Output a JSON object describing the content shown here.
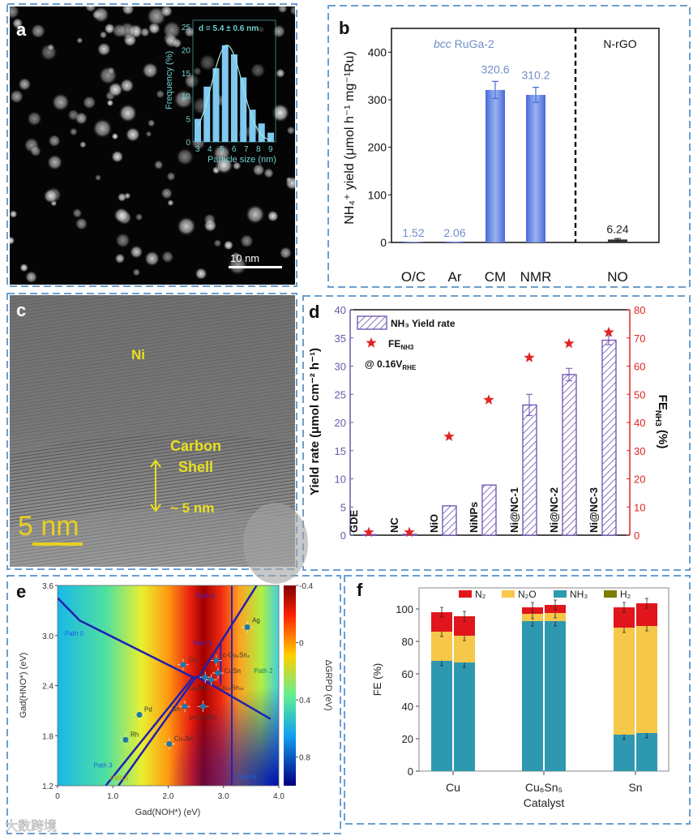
{
  "panel_labels": {
    "a": "a",
    "b": "b",
    "c": "c",
    "d": "d",
    "e": "e",
    "f": "f"
  },
  "panel_a": {
    "scale_bar": "10 nm",
    "colors": {
      "bar": "#7fc8f0",
      "axis": "#6fd0d0"
    }
  },
  "panel_c": {
    "ni_label": "Ni",
    "carbon_label": "Carbon",
    "shell_label": "Shell",
    "thickness_label": "~ 5 nm",
    "scale_bar": "5 nm"
  },
  "chart_data": [
    {
      "id": "a_inset",
      "type": "bar",
      "title": "d = 5.4 ± 0.6 nm",
      "xlabel": "Particle size (nm)",
      "ylabel": "Frequency (%)",
      "x_ticks": [
        "3",
        "4",
        "5",
        "6",
        "7",
        "8",
        "9"
      ],
      "xlim": [
        3,
        9
      ],
      "y_ticks": [
        "0",
        "5",
        "10",
        "15",
        "20",
        "25"
      ],
      "ylim": [
        0,
        25
      ],
      "bin_centers": [
        3,
        3.75,
        4.5,
        5.25,
        6,
        6.75,
        7.5,
        8.25,
        9
      ],
      "values": [
        5,
        12,
        16,
        21,
        19,
        14,
        7,
        4,
        2
      ],
      "fit": "gaussian"
    },
    {
      "id": "b",
      "type": "bar",
      "categories": [
        "O/C",
        "Ar",
        "CM",
        "NMR",
        "NO"
      ],
      "values": [
        1.52,
        2.06,
        320.6,
        310.2,
        6.24
      ],
      "value_labels": [
        "1.52",
        "2.06",
        "320.6",
        "310.2",
        "6.24"
      ],
      "errors": [
        0,
        0,
        18,
        16,
        2
      ],
      "group_labels": [
        "bcc RuGa-2",
        "N-rGO"
      ],
      "group_label_prefix": "bcc",
      "group_label_rest": " RuGa-2",
      "ylabel": "NH₄⁺ yield (μmol h⁻¹ mg⁻¹Ru)",
      "ylim": [
        0,
        450
      ],
      "y_ticks": [
        "0",
        "100",
        "200",
        "300",
        "400"
      ],
      "colors": {
        "bar": "#5577dd",
        "label": "#6f8fca",
        "other": "#333333"
      }
    },
    {
      "id": "d",
      "type": "bar",
      "categories": [
        "GDE",
        "NC",
        "NiO",
        "NiNPs",
        "Ni@NC-1",
        "Ni@NC-2",
        "Ni@NC-3"
      ],
      "series": [
        {
          "name": "NH₃ Yield rate",
          "axis": "left",
          "values": [
            0.1,
            0.15,
            5.2,
            8.9,
            23.1,
            28.5,
            34.6
          ],
          "errors": [
            0,
            0,
            0.1,
            0.2,
            1.9,
            1.1,
            0.8
          ]
        },
        {
          "name": "FE_NH3",
          "axis": "right",
          "type": "scatter",
          "values": [
            1,
            1,
            35,
            48,
            63,
            68,
            72
          ]
        }
      ],
      "legend": [
        "NH₃ Yield rate",
        "FE",
        "NH3"
      ],
      "annotation": [
        "@ 0.16V",
        "RHE"
      ],
      "ylabel": "Yield rate (μmol cm⁻² h⁻¹)",
      "y2label": "FE",
      "y2label_sub": "NH3",
      "y2label_unit": " (%)",
      "ylim": [
        0,
        40
      ],
      "y2lim": [
        0,
        80
      ],
      "y_ticks": [
        "0",
        "5",
        "10",
        "15",
        "20",
        "25",
        "30",
        "35",
        "40"
      ],
      "y2_ticks": [
        "0",
        "10",
        "20",
        "30",
        "40",
        "50",
        "60",
        "70",
        "80"
      ],
      "colors": {
        "bar": "#6a4fb0",
        "star": "#e02424",
        "left_axis": "#6a5aa8",
        "right_axis": "#e02424"
      }
    },
    {
      "id": "e",
      "type": "heatmap",
      "xlabel": "Gad(NOH*) (eV)",
      "ylabel": "Gad(HNO*) (eV)",
      "xlim": [
        0,
        4
      ],
      "ylim": [
        1.2,
        3.6
      ],
      "x_ticks": [
        "0",
        "1.0",
        "2.0",
        "3.0",
        "4.0"
      ],
      "y_ticks": [
        "1.2",
        "1.8",
        "2.4",
        "3.0",
        "3.6"
      ],
      "colorbar_label": "ΔGRPD (eV)",
      "colorbar_ticks": [
        "-0.4",
        "0",
        "0.4",
        "0.8"
      ],
      "colorbar_range": [
        -0.4,
        1.0
      ],
      "points": [
        {
          "label": "Cu",
          "x": 2.27,
          "y": 2.65
        },
        {
          "label": "Ag",
          "x": 3.43,
          "y": 3.1
        },
        {
          "label": "c-Cu₆Sn₄",
          "x": 2.87,
          "y": 2.7
        },
        {
          "label": "CuSn",
          "x": 2.9,
          "y": 2.55
        },
        {
          "label": "Cu₆Sn₅",
          "x": 2.67,
          "y": 2.5
        },
        {
          "label": "Cu₁₀Sn₁₆",
          "x": 2.78,
          "y": 2.47
        },
        {
          "label": "Sn",
          "x": 2.3,
          "y": 2.15
        },
        {
          "label": "p-Cu₆Sn₄",
          "x": 2.63,
          "y": 2.15
        },
        {
          "label": "Pd",
          "x": 1.48,
          "y": 2.05
        },
        {
          "label": "Rh",
          "x": 1.23,
          "y": 1.75
        },
        {
          "label": "Cu₃Sn",
          "x": 2.02,
          "y": 1.7
        }
      ],
      "regions": [
        "Path 0",
        "Path 1",
        "Path 2",
        "Path 3",
        "Path 3",
        "Path 4",
        "Path 4"
      ]
    },
    {
      "id": "f",
      "type": "bar",
      "stacked": true,
      "categories": [
        "Cu",
        "Cu₆Sn₅",
        "Sn"
      ],
      "xlabel": "Catalyst",
      "ylabel": "FE (%)",
      "ylim": [
        0,
        113
      ],
      "y_ticks": [
        "0",
        "20",
        "40",
        "60",
        "80",
        "100"
      ],
      "legend": [
        "N₂",
        "N₂O",
        "NH₃",
        "H₂"
      ],
      "bars": [
        {
          "category": "Cu",
          "NH3": 68,
          "N2O": 18,
          "N2": 12,
          "H2": 0
        },
        {
          "category": "Cu",
          "NH3": 67,
          "N2O": 16.5,
          "N2": 12,
          "H2": 0
        },
        {
          "category": "Cu₆Sn₅",
          "NH3": 92.5,
          "N2O": 4.5,
          "N2": 4,
          "H2": 0
        },
        {
          "category": "Cu₆Sn₅",
          "NH3": 92.5,
          "N2O": 5,
          "N2": 5,
          "H2": 0
        },
        {
          "category": "Sn",
          "NH3": 22.5,
          "N2O": 66,
          "N2": 12.5,
          "H2": 0
        },
        {
          "category": "Sn",
          "NH3": 23.5,
          "N2O": 66,
          "N2": 14,
          "H2": 0
        }
      ],
      "colors": {
        "N2": "#e0161c",
        "N2O": "#f5c84a",
        "NH3": "#2e98b0",
        "H2": "#7d7d00"
      }
    }
  ],
  "watermark": "大数跨境"
}
